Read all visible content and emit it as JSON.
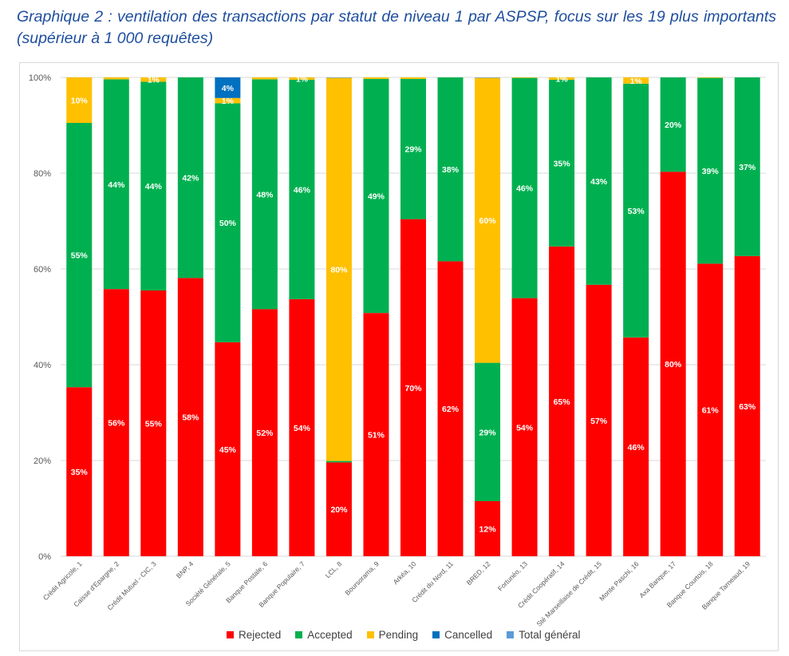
{
  "caption": "Graphique 2 : ventilation des transactions par statut de niveau 1 par ASPSP, focus sur les 19 plus importants (supérieur à 1 000 requêtes)",
  "colors": {
    "Rejected": "#ff0000",
    "Accepted": "#00b050",
    "Pending": "#ffc000",
    "Cancelled": "#0070c0",
    "Total général": "#5b9bd5"
  },
  "chart_data": {
    "type": "bar",
    "stacked": true,
    "percent": true,
    "title": "",
    "xlabel": "",
    "ylabel": "",
    "ylim": [
      0,
      100
    ],
    "yticks": [
      "0%",
      "20%",
      "40%",
      "60%",
      "80%",
      "100%"
    ],
    "grid": true,
    "legend_position": "bottom",
    "categories": [
      "Crédit Agricole, 1",
      "Caisse d'Epargne, 2",
      "Crédit Mutuel - CIC, 3",
      "BNP, 4",
      "Société Générale, 5",
      "Banque Postale, 6",
      "Banque Populaire, 7",
      "LCL, 8",
      "Boursorama, 9",
      "Arkéa, 10",
      "Crédit du Nord, 11",
      "BRED, 12",
      "Fortunéo, 13",
      "Crédit Coopératif, 14",
      "Sté Marseillaise de Crédit, 15",
      "Monte Paschi, 16",
      "Axa Banque, 17",
      "Banque Courtois, 18",
      "Banque Tarneaud, 19"
    ],
    "series": [
      {
        "name": "Rejected",
        "values": [
          35.3,
          55.8,
          55.5,
          58.1,
          44.7,
          51.6,
          53.7,
          19.6,
          50.8,
          70.4,
          61.6,
          11.5,
          53.9,
          64.7,
          56.7,
          45.7,
          80.3,
          61.1,
          62.7
        ],
        "labels": [
          "35%",
          "56%",
          "55%",
          "58%",
          "45%",
          "52%",
          "54%",
          "20%",
          "51%",
          "70%",
          "62%",
          "12%",
          "54%",
          "65%",
          "57%",
          "46%",
          "80%",
          "61%",
          "63%"
        ]
      },
      {
        "name": "Accepted",
        "values": [
          55.2,
          43.8,
          43.6,
          41.9,
          49.9,
          48.0,
          45.8,
          0.3,
          48.9,
          29.3,
          38.4,
          28.9,
          46.0,
          34.8,
          43.3,
          53.0,
          19.7,
          38.8,
          37.3
        ],
        "labels": [
          "55%",
          "44%",
          "44%",
          "42%",
          "50%",
          "48%",
          "46%",
          "",
          "49%",
          "29%",
          "38%",
          "29%",
          "46%",
          "35%",
          "43%",
          "53%",
          "20%",
          "39%",
          "37%"
        ]
      },
      {
        "name": "Pending",
        "values": [
          9.5,
          0.4,
          0.9,
          0.0,
          1.1,
          0.4,
          0.5,
          80.0,
          0.3,
          0.3,
          0.0,
          59.5,
          0.1,
          0.5,
          0.0,
          1.3,
          0.0,
          0.1,
          0.0
        ],
        "labels": [
          "10%",
          "",
          "1%",
          "",
          "1%",
          "",
          "1%",
          "80%",
          "",
          "",
          "",
          "60%",
          "",
          "1%",
          "",
          "1%",
          "",
          "",
          ""
        ]
      },
      {
        "name": "Cancelled",
        "values": [
          0,
          0,
          0,
          0,
          4.3,
          0,
          0,
          0,
          0,
          0,
          0,
          0,
          0,
          0,
          0,
          0,
          0,
          0,
          0
        ],
        "labels": [
          "",
          "",
          "",
          "",
          "4%",
          "",
          "",
          "",
          "",
          "",
          "",
          "",
          "",
          "",
          "",
          "",
          "",
          "",
          ""
        ]
      },
      {
        "name": "Total général",
        "values": [
          0,
          0,
          0,
          0,
          0,
          0,
          0,
          0.1,
          0,
          0,
          0,
          0.1,
          0,
          0,
          0,
          0,
          0,
          0,
          0
        ],
        "labels": [
          "",
          "",
          "",
          "",
          "",
          "",
          "",
          "",
          "",
          "",
          "",
          "",
          "",
          "",
          "",
          "",
          "",
          "",
          ""
        ]
      }
    ]
  }
}
